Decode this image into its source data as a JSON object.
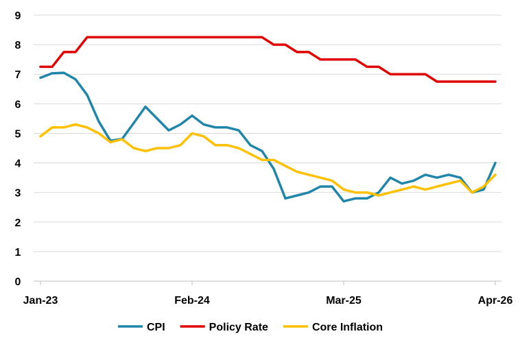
{
  "chart_data": {
    "type": "line",
    "title": "",
    "xlabel": "",
    "ylabel": "",
    "ylim": [
      0,
      9
    ],
    "yticks": [
      "0",
      "1",
      "2",
      "3",
      "4",
      "5",
      "6",
      "7",
      "8",
      "9"
    ],
    "grid": "horizontal",
    "legend_position": "bottom",
    "x_tick_labels": [
      "Jan-23",
      "Feb-24",
      "Mar-25",
      "Apr-26"
    ],
    "x_tick_index": [
      0,
      13,
      26,
      39
    ],
    "x": [
      "Jan-23",
      "Feb-23",
      "Mar-23",
      "Apr-23",
      "May-23",
      "Jun-23",
      "Jul-23",
      "Aug-23",
      "Sep-23",
      "Oct-23",
      "Nov-23",
      "Dec-23",
      "Jan-24",
      "Feb-24",
      "Mar-24",
      "Apr-24",
      "May-24",
      "Jun-24",
      "Jul-24",
      "Aug-24",
      "Sep-24",
      "Oct-24",
      "Nov-24",
      "Dec-24",
      "Jan-25",
      "Feb-25",
      "Mar-25",
      "Apr-25",
      "May-25",
      "Jun-25",
      "Jul-25",
      "Aug-25",
      "Sep-25",
      "Oct-25",
      "Nov-25",
      "Dec-25",
      "Jan-26",
      "Feb-26",
      "Mar-26",
      "Apr-26"
    ],
    "series": [
      {
        "name": "CPI",
        "color": "#1F86A9",
        "values": [
          6.88,
          7.03,
          7.05,
          6.83,
          6.3,
          5.4,
          4.75,
          4.81,
          5.35,
          5.9,
          5.5,
          5.1,
          5.3,
          5.6,
          5.3,
          5.2,
          5.2,
          5.1,
          4.6,
          4.4,
          3.8,
          2.8,
          2.9,
          3.0,
          3.2,
          3.2,
          2.7,
          2.8,
          2.8,
          3.0,
          3.5,
          3.3,
          3.4,
          3.6,
          3.5,
          3.6,
          3.5,
          3.0,
          3.1,
          4.0
        ]
      },
      {
        "name": "Policy Rate",
        "color": "#E00000",
        "values": [
          7.25,
          7.25,
          7.75,
          7.75,
          8.25,
          8.25,
          8.25,
          8.25,
          8.25,
          8.25,
          8.25,
          8.25,
          8.25,
          8.25,
          8.25,
          8.25,
          8.25,
          8.25,
          8.25,
          8.25,
          8.0,
          8.0,
          7.75,
          7.75,
          7.5,
          7.5,
          7.5,
          7.5,
          7.25,
          7.25,
          7.0,
          7.0,
          7.0,
          7.0,
          6.75,
          6.75,
          6.75,
          6.75,
          6.75,
          6.75
        ]
      },
      {
        "name": "Core Inflation",
        "color": "#FFC000",
        "values": [
          4.9,
          5.2,
          5.2,
          5.3,
          5.2,
          5.0,
          4.7,
          4.8,
          4.5,
          4.4,
          4.5,
          4.5,
          4.6,
          5.0,
          4.9,
          4.6,
          4.6,
          4.5,
          4.3,
          4.1,
          4.1,
          3.9,
          3.7,
          3.6,
          3.5,
          3.4,
          3.1,
          3.0,
          3.0,
          2.9,
          3.0,
          3.1,
          3.2,
          3.1,
          3.2,
          3.3,
          3.4,
          3.0,
          3.2,
          3.6
        ]
      }
    ]
  }
}
